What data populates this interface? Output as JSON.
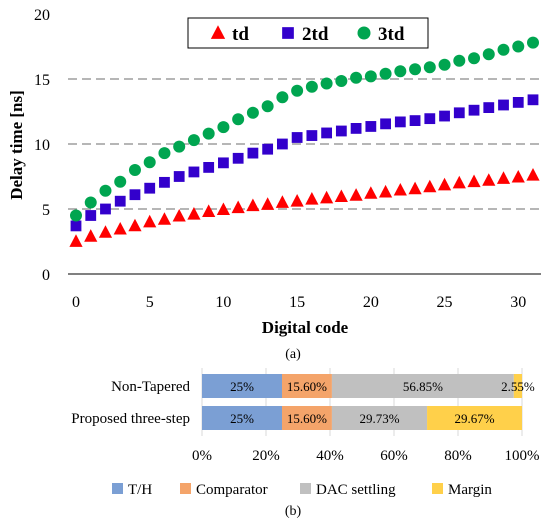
{
  "chart_data": [
    {
      "panel_label": "(a)",
      "type": "scatter",
      "xlabel": "Digital code",
      "ylabel": "Delay time [ns]",
      "xlim": [
        0,
        31.5
      ],
      "ylim": [
        0,
        20
      ],
      "x_ticks": [
        "0",
        "5",
        "10",
        "15",
        "20",
        "25",
        "30"
      ],
      "y_ticks": [
        "0",
        "5",
        "10",
        "15",
        "20"
      ],
      "grid": "horizontal dashed",
      "legend_position": "top",
      "x": [
        0,
        1,
        2,
        3,
        4,
        5,
        6,
        7,
        8,
        9,
        10,
        11,
        12,
        13,
        14,
        15,
        16,
        17,
        18,
        19,
        20,
        21,
        22,
        23,
        24,
        25,
        26,
        27,
        28,
        29,
        30,
        31
      ],
      "series": [
        {
          "name": "td",
          "marker": "triangle",
          "color": "#ff0000",
          "values": [
            2.5,
            2.9,
            3.2,
            3.45,
            3.7,
            4.0,
            4.2,
            4.45,
            4.6,
            4.8,
            4.95,
            5.1,
            5.25,
            5.35,
            5.5,
            5.6,
            5.75,
            5.85,
            5.95,
            6.05,
            6.2,
            6.3,
            6.45,
            6.55,
            6.7,
            6.85,
            7.0,
            7.1,
            7.2,
            7.35,
            7.45,
            7.6
          ]
        },
        {
          "name": "2td",
          "marker": "square",
          "color": "#3300cc",
          "values": [
            3.7,
            4.5,
            5.0,
            5.6,
            6.1,
            6.6,
            7.05,
            7.5,
            7.85,
            8.2,
            8.55,
            8.9,
            9.3,
            9.6,
            10.0,
            10.5,
            10.65,
            10.85,
            11.0,
            11.2,
            11.35,
            11.55,
            11.7,
            11.8,
            11.95,
            12.15,
            12.4,
            12.6,
            12.8,
            13.0,
            13.2,
            13.4
          ]
        },
        {
          "name": "3td",
          "marker": "circle",
          "color": "#00a550",
          "values": [
            4.5,
            5.5,
            6.4,
            7.1,
            8.0,
            8.6,
            9.3,
            9.8,
            10.3,
            10.8,
            11.3,
            11.9,
            12.4,
            12.9,
            13.6,
            14.1,
            14.4,
            14.65,
            14.85,
            15.1,
            15.2,
            15.4,
            15.6,
            15.75,
            15.9,
            16.1,
            16.4,
            16.6,
            16.9,
            17.25,
            17.5,
            17.8
          ]
        }
      ]
    },
    {
      "panel_label": "(b)",
      "type": "bar",
      "orientation": "horizontal",
      "stacked": true,
      "categories": [
        "Non-Tapered",
        "Proposed three-step"
      ],
      "x_ticks": [
        "0%",
        "20%",
        "40%",
        "60%",
        "80%",
        "100%"
      ],
      "xlim": [
        0,
        100
      ],
      "legend_position": "bottom",
      "series": [
        {
          "name": "T/H",
          "color": "#7b9fd4",
          "values": [
            25,
            25
          ],
          "labels": [
            "25%",
            "25%"
          ]
        },
        {
          "name": "Comparator",
          "color": "#f4a46a",
          "values": [
            15.6,
            15.6
          ],
          "labels": [
            "15.60%",
            "15.60%"
          ]
        },
        {
          "name": "DAC settling",
          "color": "#c0c0c0",
          "values": [
            56.85,
            29.73
          ],
          "labels": [
            "56.85%",
            "29.73%"
          ]
        },
        {
          "name": "Margin",
          "color": "#ffd04a",
          "values": [
            2.55,
            29.67
          ],
          "labels": [
            "2.55%",
            "29.67%"
          ]
        }
      ]
    }
  ]
}
